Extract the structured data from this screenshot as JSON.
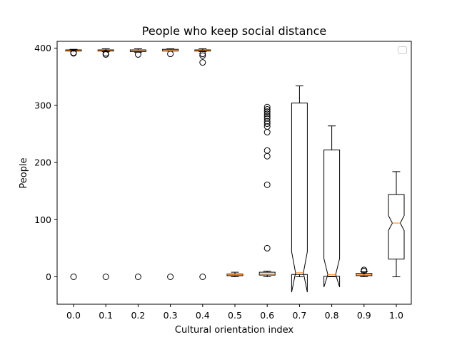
{
  "chart_data": {
    "type": "boxplot",
    "title": "People who keep social distance",
    "xlabel": "Cultural orientation index",
    "ylabel": "People",
    "ylim": [
      -48,
      412
    ],
    "yticks": [
      0,
      100,
      200,
      300,
      400
    ],
    "legend": {
      "visible": true,
      "position": "top-right",
      "entries": []
    },
    "grid": false,
    "colors": {
      "box": "#000000",
      "median": "#ff7f0e",
      "flier": "#000000"
    },
    "boxes": [
      {
        "label": "0.0",
        "notched": false,
        "whisker_low": 395,
        "q1": 395,
        "median": 396,
        "q3": 397,
        "whisker_high": 398,
        "fliers": [
          392,
          391,
          0
        ]
      },
      {
        "label": "0.1",
        "notched": false,
        "whisker_low": 394,
        "q1": 395,
        "median": 396,
        "q3": 397,
        "whisker_high": 399,
        "fliers": [
          391,
          389,
          0
        ]
      },
      {
        "label": "0.2",
        "notched": false,
        "whisker_low": 393,
        "q1": 394,
        "median": 395,
        "q3": 397,
        "whisker_high": 399,
        "fliers": [
          389,
          0
        ]
      },
      {
        "label": "0.3",
        "notched": false,
        "whisker_low": 395,
        "q1": 395,
        "median": 396,
        "q3": 398,
        "whisker_high": 399,
        "fliers": [
          390,
          0
        ]
      },
      {
        "label": "0.4",
        "notched": false,
        "whisker_low": 394,
        "q1": 395,
        "median": 396,
        "q3": 397,
        "whisker_high": 399,
        "fliers": [
          390,
          387,
          375,
          0
        ]
      },
      {
        "label": "0.5",
        "notched": false,
        "whisker_low": 0,
        "q1": 2,
        "median": 4,
        "q3": 5,
        "whisker_high": 8,
        "fliers": []
      },
      {
        "label": "0.6",
        "notched": false,
        "whisker_low": 0,
        "q1": 3,
        "median": 5,
        "q3": 8,
        "whisker_high": 10,
        "fliers": [
          50,
          161,
          211,
          221,
          253,
          263,
          268,
          272,
          277,
          281,
          285,
          289,
          293,
          297
        ]
      },
      {
        "label": "0.7",
        "notched": true,
        "whisker_low": 0,
        "q1": 4,
        "median": 7,
        "q3": 304,
        "whisker_high": 334,
        "notch_low": -27,
        "notch_high": 44,
        "fliers": []
      },
      {
        "label": "0.8",
        "notched": true,
        "whisker_low": 0,
        "q1": 1,
        "median": 4,
        "q3": 222,
        "whisker_high": 264,
        "notch_low": -18,
        "notch_high": 32,
        "fliers": []
      },
      {
        "label": "0.9",
        "notched": false,
        "whisker_low": 0,
        "q1": 2,
        "median": 4,
        "q3": 6,
        "whisker_high": 9,
        "fliers": [
          12,
          10
        ]
      },
      {
        "label": "1.0",
        "notched": true,
        "whisker_low": 0,
        "q1": 31,
        "median": 94,
        "q3": 144,
        "whisker_high": 184,
        "notch_low": 81,
        "notch_high": 107,
        "fliers": []
      }
    ]
  }
}
